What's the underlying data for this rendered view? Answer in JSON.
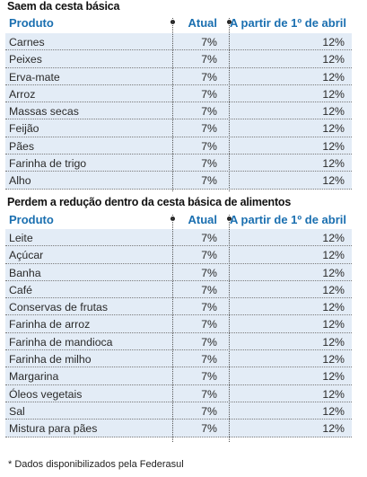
{
  "section1": {
    "title": "Saem da cesta básica",
    "headers": {
      "produto": "Produto",
      "atual": "Atual",
      "abril": "A partir de 1º de abril"
    },
    "rows": [
      {
        "produto": "Carnes",
        "atual": "7%",
        "abril": "12%"
      },
      {
        "produto": "Peixes",
        "atual": "7%",
        "abril": "12%"
      },
      {
        "produto": "Erva-mate",
        "atual": "7%",
        "abril": "12%"
      },
      {
        "produto": "Arroz",
        "atual": "7%",
        "abril": "12%"
      },
      {
        "produto": "Massas secas",
        "atual": "7%",
        "abril": "12%"
      },
      {
        "produto": "Feijão",
        "atual": "7%",
        "abril": "12%"
      },
      {
        "produto": "Pães",
        "atual": "7%",
        "abril": "12%"
      },
      {
        "produto": "Farinha de trigo",
        "atual": "7%",
        "abril": "12%"
      },
      {
        "produto": "Alho",
        "atual": "7%",
        "abril": "12%"
      }
    ]
  },
  "section2": {
    "title": "Perdem a redução dentro da cesta básica de alimentos",
    "headers": {
      "produto": "Produto",
      "atual": "Atual",
      "abril": "A partir de 1º de abril"
    },
    "rows": [
      {
        "produto": "Leite",
        "atual": "7%",
        "abril": "12%"
      },
      {
        "produto": "Açúcar",
        "atual": "7%",
        "abril": "12%"
      },
      {
        "produto": "Banha",
        "atual": "7%",
        "abril": "12%"
      },
      {
        "produto": "Café",
        "atual": "7%",
        "abril": "12%"
      },
      {
        "produto": "Conservas de frutas",
        "atual": "7%",
        "abril": "12%"
      },
      {
        "produto": "Farinha de arroz",
        "atual": "7%",
        "abril": "12%"
      },
      {
        "produto": "Farinha de mandioca",
        "atual": "7%",
        "abril": "12%"
      },
      {
        "produto": "Farinha de milho",
        "atual": "7%",
        "abril": "12%"
      },
      {
        "produto": "Margarina",
        "atual": "7%",
        "abril": "12%"
      },
      {
        "produto": "Óleos vegetais",
        "atual": "7%",
        "abril": "12%"
      },
      {
        "produto": "Sal",
        "atual": "7%",
        "abril": "12%"
      },
      {
        "produto": "Mistura para pães",
        "atual": "7%",
        "abril": "12%"
      }
    ]
  },
  "footnote": "* Dados disponibilizados pela Federasul",
  "colors": {
    "header_text": "#1a6fb0",
    "row_bg": "#e3ecf6"
  }
}
